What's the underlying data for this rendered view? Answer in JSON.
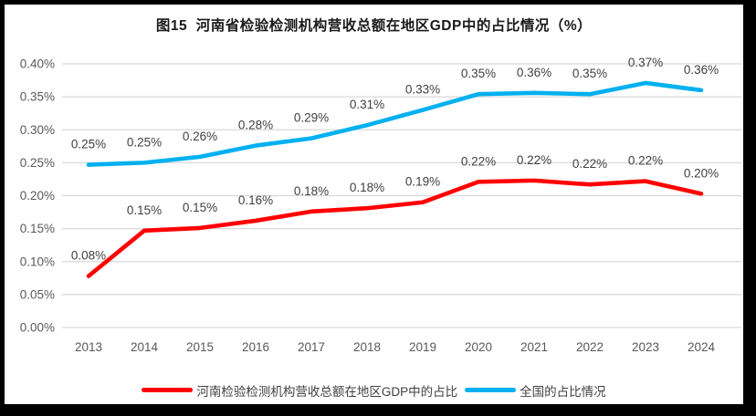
{
  "chart_data": {
    "type": "line",
    "title": "图15  河南省检验检测机构营收总额在地区GDP中的占比情况（%）",
    "xlabel": "",
    "ylabel": "",
    "categories": [
      "2013",
      "2014",
      "2015",
      "2016",
      "2017",
      "2018",
      "2019",
      "2020",
      "2021",
      "2022",
      "2023",
      "2024"
    ],
    "series": [
      {
        "name": "河南检验检测机构营收总额在地区GDP中的占比",
        "color": "#FF0000",
        "values": [
          0.08,
          0.15,
          0.15,
          0.16,
          0.18,
          0.18,
          0.19,
          0.22,
          0.22,
          0.22,
          0.22,
          0.2
        ],
        "point_labels": [
          "0.08%",
          "0.15%",
          "0.15%",
          "0.16%",
          "0.18%",
          "0.18%",
          "0.19%",
          "0.22%",
          "0.22%",
          "0.22%",
          "0.22%",
          "0.20%"
        ],
        "plot_values": [
          0.078,
          0.147,
          0.151,
          0.162,
          0.176,
          0.181,
          0.19,
          0.221,
          0.223,
          0.217,
          0.222,
          0.203
        ]
      },
      {
        "name": "全国的占比情况",
        "color": "#00B0F0",
        "values": [
          0.25,
          0.25,
          0.26,
          0.28,
          0.29,
          0.31,
          0.33,
          0.35,
          0.36,
          0.35,
          0.37,
          0.36
        ],
        "point_labels": [
          "0.25%",
          "0.25%",
          "0.26%",
          "0.28%",
          "0.29%",
          "0.31%",
          "0.33%",
          "0.35%",
          "0.36%",
          "0.35%",
          "0.37%",
          "0.36%"
        ],
        "plot_values": [
          0.247,
          0.25,
          0.259,
          0.276,
          0.287,
          0.307,
          0.33,
          0.354,
          0.356,
          0.354,
          0.371,
          0.36
        ]
      }
    ],
    "ylim": [
      0,
      0.4
    ],
    "ytick_step": 0.05,
    "ytick_labels": [
      "0.00%",
      "0.05%",
      "0.10%",
      "0.15%",
      "0.20%",
      "0.25%",
      "0.30%",
      "0.35%",
      "0.40%"
    ],
    "grid": true,
    "legend_position": "bottom",
    "colors": {
      "gridline": "#D9D9D9",
      "axis_text": "#595959",
      "data_label": "#404040",
      "title_text": "#1a1a1a",
      "frame_border": "#000000",
      "background": "#FFFFFF"
    }
  }
}
